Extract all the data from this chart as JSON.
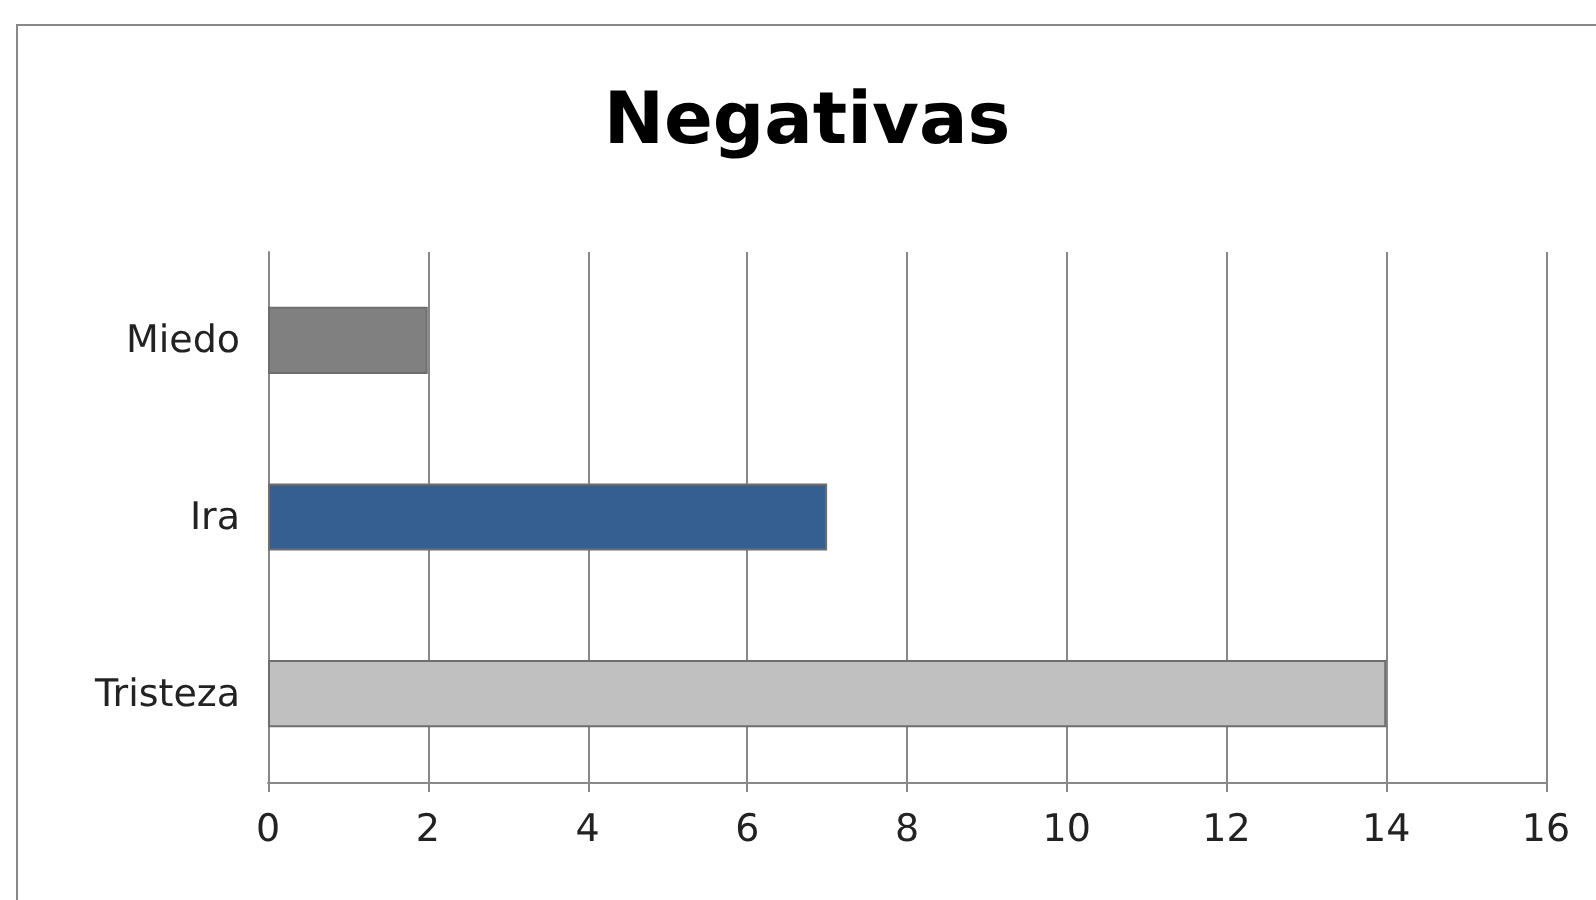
{
  "chart_data": {
    "type": "bar",
    "title": "Negativas",
    "orientation": "horizontal",
    "categories": [
      "Miedo",
      "Ira",
      "Tristeza"
    ],
    "values": [
      2,
      7,
      14
    ],
    "colors": [
      "#808080",
      "#365f91",
      "#c0c0c0"
    ],
    "xlim": [
      0,
      16
    ],
    "xticks": [
      0,
      2,
      4,
      6,
      8,
      10,
      12,
      14,
      16
    ],
    "grid": "x"
  }
}
